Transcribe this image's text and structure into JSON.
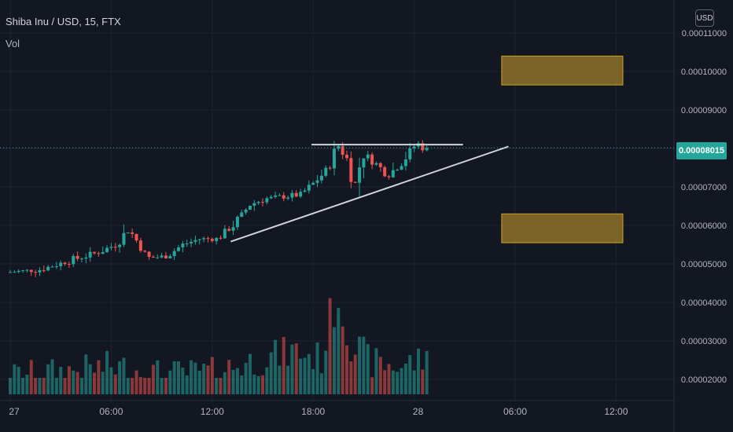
{
  "legend": {
    "title": "Shiba Inu / USD, 15, FTX",
    "indicator": "Vol"
  },
  "axis": {
    "currency": "USD",
    "current_price_label": "0.00008015"
  },
  "colors": {
    "background": "#131722",
    "up": "#26a69a",
    "down": "#ef5350",
    "grid": "#1f2330",
    "zone": "#a07d2a",
    "trendline": "#d1d4dc"
  },
  "chart_data": {
    "type": "candlestick",
    "title": "Shiba Inu / USD, 15, FTX",
    "y_ticks": [
      "0.00011000",
      "0.00010000",
      "0.00009000",
      "0.00008000",
      "0.00007000",
      "0.00006000",
      "0.00005000",
      "0.00004000",
      "0.00003000",
      "0.00002000"
    ],
    "y_tick_values": [
      0.00011,
      0.0001,
      9e-05,
      8e-05,
      7e-05,
      6e-05,
      5e-05,
      4e-05,
      3e-05,
      2e-05
    ],
    "x_ticks": [
      "27",
      "06:00",
      "12:00",
      "18:00",
      "28",
      "06:00",
      "12:00"
    ],
    "x_tick_hours": [
      0,
      6,
      12,
      18,
      24,
      30,
      36
    ],
    "last_price": 8.015e-05,
    "price_anchors": [
      [
        0,
        4.78e-05
      ],
      [
        2,
        4.85e-05
      ],
      [
        4.3,
        5.15e-05
      ],
      [
        5.5,
        5.3e-05
      ],
      [
        6.5,
        5.5e-05
      ],
      [
        7.3,
        5.9e-05
      ],
      [
        8.0,
        5.45e-05
      ],
      [
        8.4,
        5.15e-05
      ],
      [
        9.5,
        5.2e-05
      ],
      [
        10.5,
        5.5e-05
      ],
      [
        11.5,
        5.65e-05
      ],
      [
        12.6,
        5.65e-05
      ],
      [
        13.5,
        6e-05
      ],
      [
        14.5,
        6.55e-05
      ],
      [
        15.5,
        6.7e-05
      ],
      [
        16.5,
        6.75e-05
      ],
      [
        17.5,
        6.8e-05
      ],
      [
        18.4,
        7.15e-05
      ],
      [
        19.2,
        7.5e-05
      ],
      [
        19.7,
        8.1e-05
      ],
      [
        20.3,
        7.7e-05
      ],
      [
        20.7,
        7e-05
      ],
      [
        21.2,
        7.9e-05
      ],
      [
        22.0,
        7.6e-05
      ],
      [
        22.7,
        7.3e-05
      ],
      [
        23.4,
        7.6e-05
      ],
      [
        24.0,
        7.9e-05
      ],
      [
        24.4,
        8.15e-05
      ],
      [
        24.8,
        8.015e-05
      ]
    ],
    "volume_anchors": [
      [
        0,
        2.15e-05
      ],
      [
        4,
        2.3e-05
      ],
      [
        6,
        2.4e-05
      ],
      [
        9,
        2.2e-05
      ],
      [
        12,
        2.25e-05
      ],
      [
        15,
        2.6e-05
      ],
      [
        17,
        2.8e-05
      ],
      [
        18.5,
        2.6e-05
      ],
      [
        19.4,
        4.4e-05
      ],
      [
        20.3,
        3e-05
      ],
      [
        21.5,
        2.5e-05
      ],
      [
        23,
        2.4e-05
      ],
      [
        24.8,
        2.6e-05
      ]
    ],
    "annotations": [
      {
        "type": "rectangle",
        "hours": [
          29.2,
          36.4
        ],
        "prices": [
          9.65e-05,
          0.000104
        ]
      },
      {
        "type": "rectangle",
        "hours": [
          29.2,
          36.4
        ],
        "prices": [
          5.55e-05,
          6.3e-05
        ]
      },
      {
        "type": "trendline",
        "from": [
          13.1,
          5.58e-05
        ],
        "to": [
          29.6,
          8.05e-05
        ]
      },
      {
        "type": "hline",
        "from": [
          17.9,
          8.1e-05
        ],
        "to": [
          26.9,
          8.1e-05
        ]
      }
    ],
    "current_price_line": 8.015e-05,
    "legend": [],
    "grid": true
  }
}
